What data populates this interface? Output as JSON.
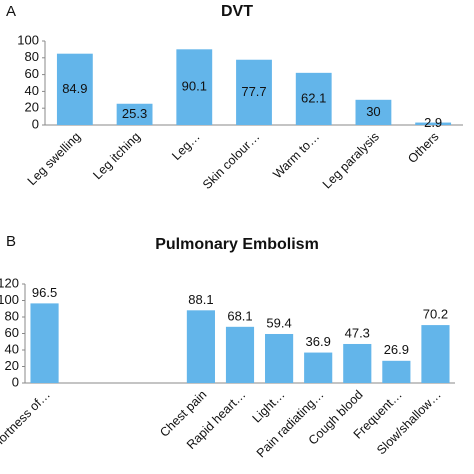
{
  "chart_data": [
    {
      "type": "bar",
      "label": "A",
      "title": "DVT",
      "categories": [
        "Leg swelling",
        "Leg itching",
        "Leg…",
        "Skin colour…",
        "Warm to…",
        "Leg paralysis",
        "Others"
      ],
      "values": [
        84.9,
        25.3,
        90.1,
        77.7,
        62.1,
        30,
        2.9
      ],
      "color": "#63b5ea",
      "ylim": [
        0,
        100
      ],
      "yticks": [
        0,
        20,
        40,
        60,
        80,
        100
      ],
      "label_position": "inside"
    },
    {
      "type": "bar",
      "label": "B",
      "title": "Pulmonary Embolism",
      "categories": [
        "Shortness of…",
        null,
        null,
        null,
        "Chest pain",
        "Rapid heart…",
        "Light…",
        "Pain radiating…",
        "Cough blood",
        "Frequent…",
        "Slow/shallow…"
      ],
      "values": [
        96.5,
        null,
        null,
        null,
        88.1,
        68.1,
        59.4,
        36.9,
        47.3,
        26.9,
        70.2
      ],
      "color": "#63b5ea",
      "ylim": [
        0,
        120
      ],
      "yticks": [
        0,
        20,
        40,
        60,
        80,
        100,
        120
      ],
      "label_position": "above"
    }
  ]
}
